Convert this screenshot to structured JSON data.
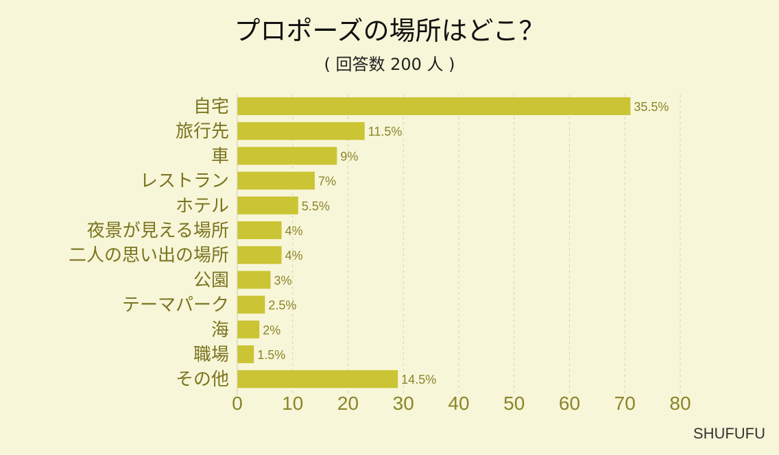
{
  "chart_data": {
    "type": "bar",
    "orientation": "horizontal",
    "title": "プロポーズの場所はどこ？",
    "subtitle": "( 回答数 200 人 )",
    "categories": [
      "自宅",
      "旅行先",
      "車",
      "レストラン",
      "ホテル",
      "夜景が見える場所",
      "二人の思い出の場所",
      "公園",
      "テーマパーク",
      "海",
      "職場",
      "その他"
    ],
    "values": [
      71,
      23,
      18,
      14,
      11,
      8,
      8,
      6,
      5,
      4,
      3,
      29
    ],
    "data_labels": [
      "35.5%",
      "11.5%",
      "9%",
      "7%",
      "5.5%",
      "4%",
      "4%",
      "3%",
      "2.5%",
      "2%",
      "1.5%",
      "14.5%"
    ],
    "xlim": [
      0,
      80
    ],
    "xticks": [
      "0",
      "10",
      "20",
      "30",
      "40",
      "50",
      "60",
      "70",
      "80"
    ],
    "grid": "vertical dashed",
    "colors": {
      "bar": "#cbc434",
      "background": "#f7f6d8",
      "label": "#8a842a"
    }
  },
  "watermark": "SHUFUFU"
}
